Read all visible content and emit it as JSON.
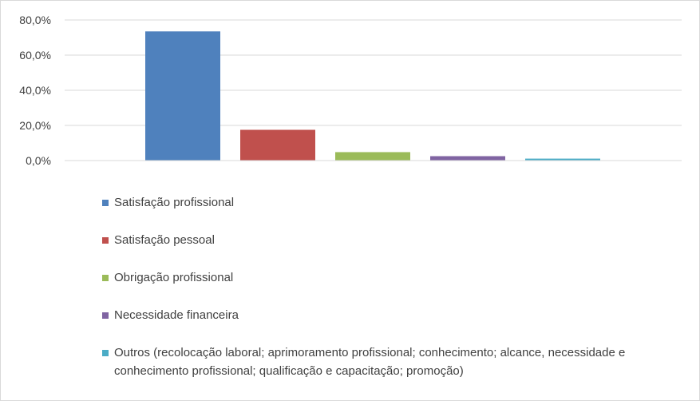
{
  "chart_data": {
    "type": "bar",
    "categories": [
      "Satisfação profissional",
      "Satisfação pessoal",
      "Obrigação profissional",
      "Necessidade financeira",
      "Outros (recolocação laboral; aprimoramento profissional; conhecimento; alcance, necessidade e conhecimento profissional; qualificação e capacitação; promoção)"
    ],
    "values": [
      73.5,
      17.5,
      4.8,
      2.5,
      1.1
    ],
    "colors": [
      "#4f81bd",
      "#c0504d",
      "#9bbb59",
      "#8064a2",
      "#4bacc6"
    ],
    "ylim": [
      0,
      80
    ],
    "yticks": [
      "0,0%",
      "20,0%",
      "40,0%",
      "60,0%",
      "80,0%"
    ],
    "grid": true,
    "legend_placement": "bottom"
  }
}
